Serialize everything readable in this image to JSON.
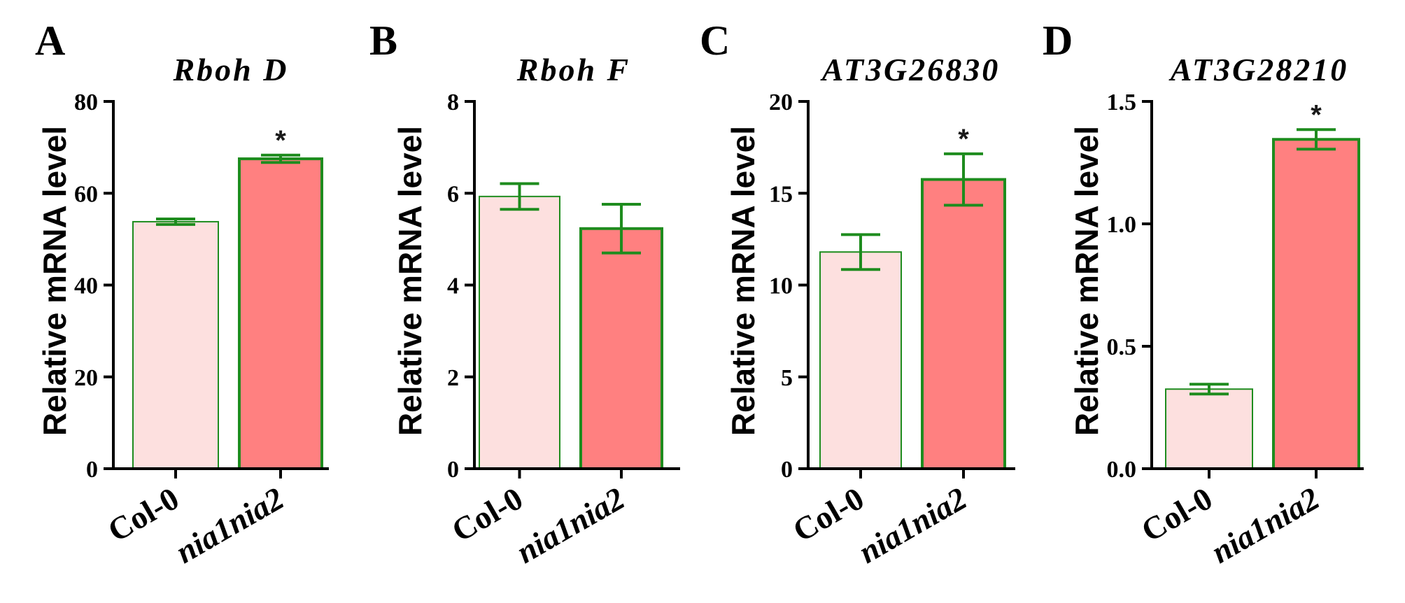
{
  "colors": {
    "control_fill": "#FDE0DF",
    "mutant_fill": "#FF8080",
    "bar_stroke": "#1E8C1E",
    "axis": "#000000"
  },
  "chart_data": [
    {
      "type": "bar",
      "panel": "A",
      "title": "Rboh D",
      "ylabel": "Relative mRNA level",
      "xlabel": "",
      "categories": [
        "Col-0",
        "nia1nia2"
      ],
      "values": [
        53.8,
        67.5
      ],
      "errors": [
        0.6,
        0.8
      ],
      "significance": [
        "",
        "*"
      ],
      "ylim": [
        0,
        80
      ],
      "yticks": [
        0,
        20,
        40,
        60,
        80
      ],
      "ytick_labels": [
        "0",
        "20",
        "40",
        "60",
        "80"
      ]
    },
    {
      "type": "bar",
      "panel": "B",
      "title": "Rboh F",
      "ylabel": "Relative mRNA level",
      "xlabel": "",
      "categories": [
        "Col-0",
        "nia1nia2"
      ],
      "values": [
        5.93,
        5.23
      ],
      "errors": [
        0.28,
        0.53
      ],
      "significance": [
        "",
        ""
      ],
      "ylim": [
        0,
        8
      ],
      "yticks": [
        0,
        2,
        4,
        6,
        8
      ],
      "ytick_labels": [
        "0",
        "2",
        "4",
        "6",
        "8"
      ]
    },
    {
      "type": "bar",
      "panel": "C",
      "title": "AT3G26830",
      "ylabel": "Relative mRNA level",
      "xlabel": "",
      "categories": [
        "Col-0",
        "nia1nia2"
      ],
      "values": [
        11.8,
        15.75
      ],
      "errors": [
        0.95,
        1.4
      ],
      "significance": [
        "",
        "*"
      ],
      "ylim": [
        0,
        20
      ],
      "yticks": [
        0,
        5,
        10,
        15,
        20
      ],
      "ytick_labels": [
        "0",
        "5",
        "10",
        "15",
        "20"
      ]
    },
    {
      "type": "bar",
      "panel": "D",
      "title": "AT3G28210",
      "ylabel": "Relative mRNA level",
      "xlabel": "",
      "categories": [
        "Col-0",
        "nia1nia2"
      ],
      "values": [
        0.325,
        1.345
      ],
      "errors": [
        0.02,
        0.04
      ],
      "significance": [
        "",
        "*"
      ],
      "ylim": [
        0,
        1.5
      ],
      "yticks": [
        0,
        0.5,
        1.0,
        1.5
      ],
      "ytick_labels": [
        "0.0",
        "0.5",
        "1.0",
        "1.5"
      ]
    }
  ]
}
